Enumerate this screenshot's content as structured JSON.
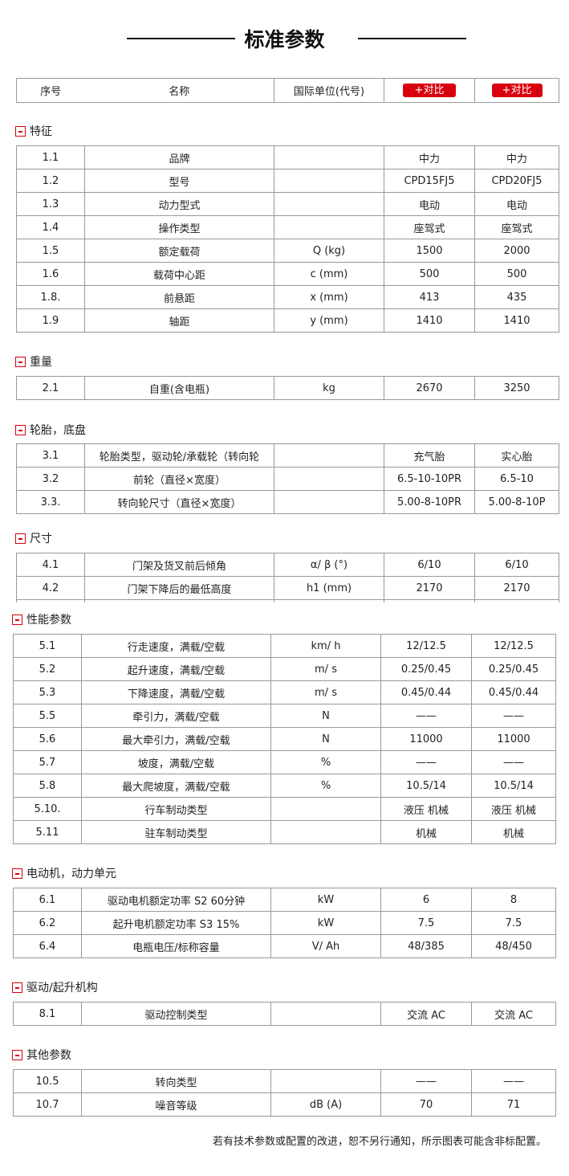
{
  "title": "标准参数",
  "header": {
    "seq": "序号",
    "name": "名称",
    "unit": "国际单位(代号)",
    "compare1": "+对比",
    "compare2": "+对比"
  },
  "sections": [
    {
      "title": "特征",
      "rows": [
        [
          "1.1",
          "品牌",
          "",
          "中力",
          "中力"
        ],
        [
          "1.2",
          "型号",
          "",
          "CPD15FJ5",
          "CPD20FJ5"
        ],
        [
          "1.3",
          "动力型式",
          "",
          "电动",
          "电动"
        ],
        [
          "1.4",
          "操作类型",
          "",
          "座驾式",
          "座驾式"
        ],
        [
          "1.5",
          "额定载荷",
          "Q (kg)",
          "1500",
          "2000"
        ],
        [
          "1.6",
          "载荷中心距",
          "c (mm)",
          "500",
          "500"
        ],
        [
          "1.8.",
          "前悬距",
          "x (mm)",
          "413",
          "435"
        ],
        [
          "1.9",
          "轴距",
          "y (mm)",
          "1410",
          "1410"
        ]
      ]
    },
    {
      "title": "重量",
      "rows": [
        [
          "2.1",
          "自重(含电瓶)",
          "kg",
          "2670",
          "3250"
        ]
      ]
    },
    {
      "title": "轮胎，底盘",
      "rows": [
        [
          "3.1",
          "轮胎类型，驱动轮/承载轮（转向轮",
          "",
          "充气胎",
          "实心胎"
        ],
        [
          "3.2",
          "前轮（直径×宽度）",
          "",
          "6.5-10-10PR",
          "6.5-10"
        ],
        [
          "3.3.",
          "转向轮尺寸（直径×宽度）",
          "",
          "5.00-8-10PR",
          "5.00-8-10P"
        ]
      ]
    },
    {
      "title": "尺寸",
      "rows": [
        [
          "4.1",
          "门架及货叉前后倾角",
          "α/ β (°)",
          "6/10",
          "6/10"
        ],
        [
          "4.2",
          "门架下降后的最低高度",
          "h1 (mm)",
          "2170",
          "2170"
        ]
      ]
    },
    {
      "title": "性能参数",
      "rows": [
        [
          "5.1",
          "行走速度，满载/空载",
          "km/ h",
          "12/12.5",
          "12/12.5"
        ],
        [
          "5.2",
          "起升速度，满载/空载",
          "m/ s",
          "0.25/0.45",
          "0.25/0.45"
        ],
        [
          "5.3",
          "下降速度，满载/空载",
          "m/ s",
          "0.45/0.44",
          "0.45/0.44"
        ],
        [
          "5.5",
          "牵引力，满载/空载",
          "N",
          "——",
          "——"
        ],
        [
          "5.6",
          "最大牵引力，满载/空载",
          "N",
          "11000",
          "11000"
        ],
        [
          "5.7",
          "坡度，满载/空载",
          "%",
          "——",
          "——"
        ],
        [
          "5.8",
          "最大爬坡度，满载/空载",
          "%",
          "10.5/14",
          "10.5/14"
        ],
        [
          "5.10.",
          "行车制动类型",
          "",
          "液压 机械",
          "液压 机械"
        ],
        [
          "5.11",
          "驻车制动类型",
          "",
          "机械",
          "机械"
        ]
      ]
    },
    {
      "title": "电动机，动力单元",
      "rows": [
        [
          "6.1",
          "驱动电机额定功率 S2 60分钟",
          "kW",
          "6",
          "8"
        ],
        [
          "6.2",
          "起升电机额定功率 S3 15%",
          "kW",
          "7.5",
          "7.5"
        ],
        [
          "6.4",
          "电瓶电压/标称容量",
          "V/ Ah",
          "48/385",
          "48/450"
        ]
      ]
    },
    {
      "title": "驱动/起升机构",
      "rows": [
        [
          "8.1",
          "驱动控制类型",
          "",
          "交流 AC",
          "交流 AC"
        ]
      ]
    },
    {
      "title": "其他参数",
      "rows": [
        [
          "10.5",
          "转向类型",
          "",
          "——",
          "——"
        ],
        [
          "10.7",
          "噪音等级",
          "dB (A)",
          "70",
          "71"
        ]
      ]
    }
  ],
  "footer": "若有技术参数或配置的改进，恕不另行通知，所示图表可能含非标配置。",
  "colors": {
    "accent": "#d8000f"
  }
}
